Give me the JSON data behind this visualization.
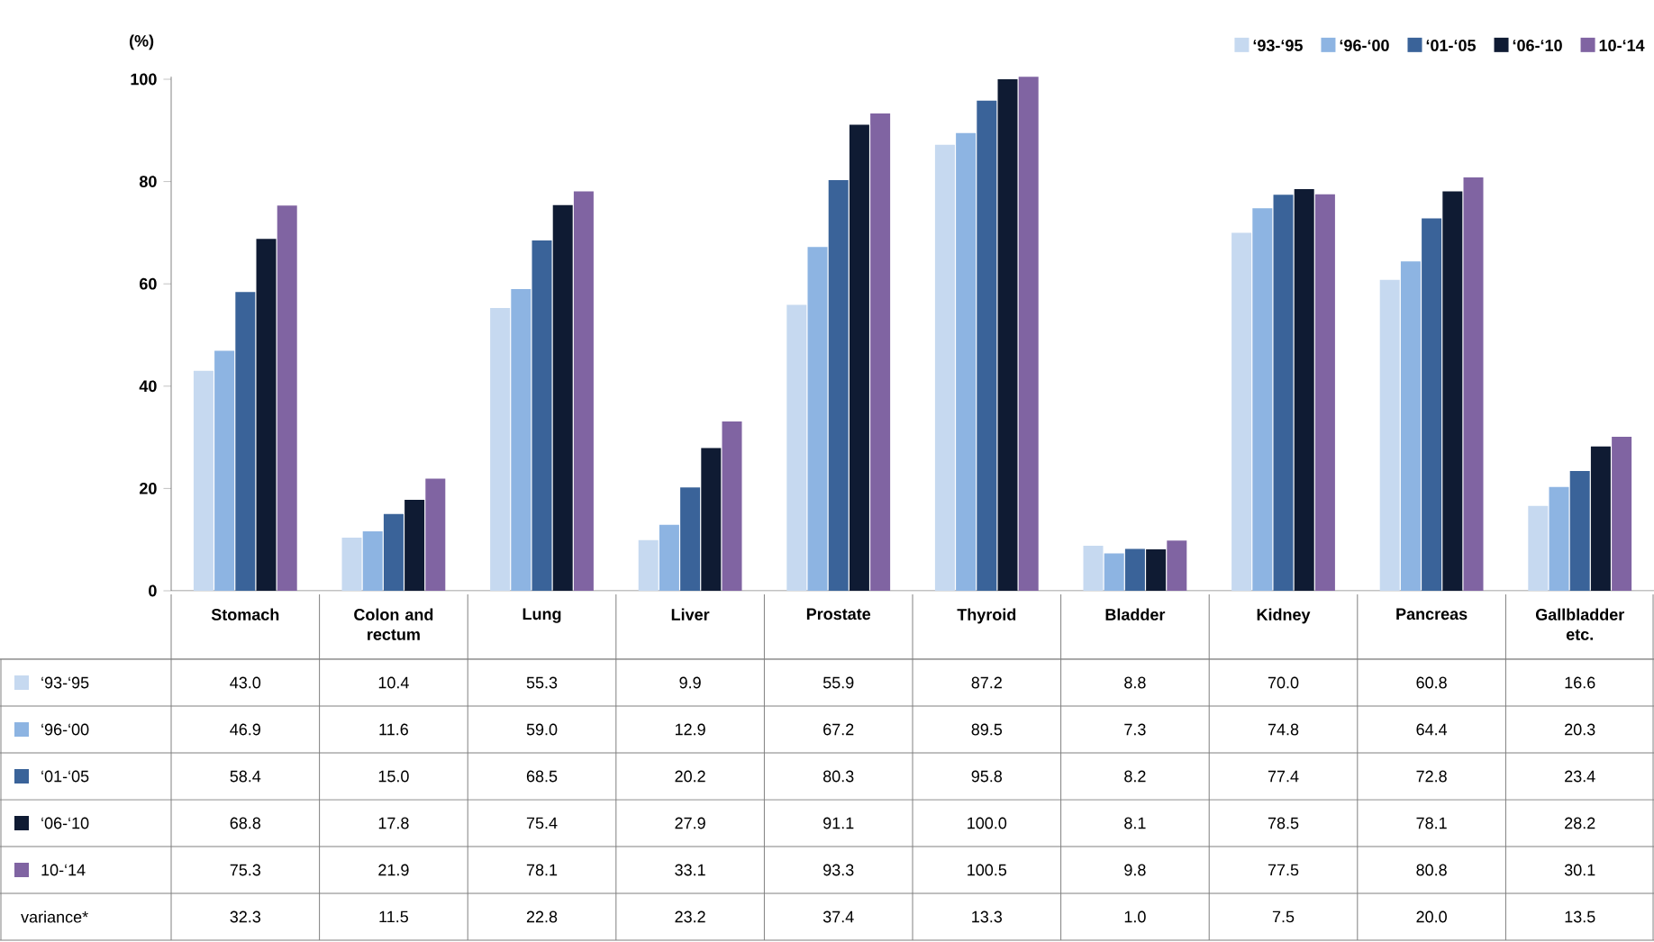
{
  "chart_data": {
    "type": "bar",
    "ylabel": "(%)",
    "categories": [
      "Stomach",
      "Colon and rectum",
      "Lung",
      "Liver",
      "Prostate",
      "Thyroid",
      "Bladder",
      "Kidney",
      "Pancreas",
      "Gallbladder etc."
    ],
    "series": [
      {
        "name": "‘93-‘95",
        "color": "#c6d9f0",
        "values": [
          43.0,
          10.4,
          55.3,
          9.9,
          55.9,
          87.2,
          8.8,
          70.0,
          60.8,
          16.6
        ],
        "value_labels": [
          "43.0",
          "10.4",
          "55.3",
          "9.9",
          "55.9",
          "87.2",
          "8.8",
          "70.0",
          "60.8",
          "16.6"
        ]
      },
      {
        "name": "‘96-‘00",
        "color": "#8db4e2",
        "values": [
          46.9,
          11.6,
          59.0,
          12.9,
          67.2,
          89.5,
          7.3,
          74.8,
          64.4,
          20.3
        ],
        "value_labels": [
          "46.9",
          "11.6",
          "59.0",
          "12.9",
          "67.2",
          "89.5",
          "7.3",
          "74.8",
          "64.4",
          "20.3"
        ]
      },
      {
        "name": "‘01-‘05",
        "color": "#3a6399",
        "values": [
          58.4,
          15.0,
          68.5,
          20.2,
          80.3,
          95.8,
          8.2,
          77.4,
          72.8,
          23.4
        ],
        "value_labels": [
          "58.4",
          "15.0",
          "68.5",
          "20.2",
          "80.3",
          "95.8",
          "8.2",
          "77.4",
          "72.8",
          "23.4"
        ]
      },
      {
        "name": "‘06-‘10",
        "color": "#0f1b33",
        "values": [
          68.8,
          17.8,
          75.4,
          27.9,
          91.1,
          100.0,
          8.1,
          78.5,
          78.1,
          28.2
        ],
        "value_labels": [
          "68.8",
          "17.8",
          "75.4",
          "27.9",
          "91.1",
          "100.0",
          "8.1",
          "78.5",
          "78.1",
          "28.2"
        ]
      },
      {
        "name": "10-‘14",
        "color": "#8064a2",
        "values": [
          75.3,
          21.9,
          78.1,
          33.1,
          93.3,
          100.5,
          9.8,
          77.5,
          80.8,
          30.1
        ],
        "value_labels": [
          "75.3",
          "21.9",
          "78.1",
          "33.1",
          "93.3",
          "100.5",
          "9.8",
          "77.5",
          "80.8",
          "30.1"
        ]
      }
    ],
    "ylim": [
      0,
      100.5
    ],
    "yticks": [
      0,
      20,
      40,
      60,
      80,
      100
    ],
    "legend": "top right",
    "annotations": [
      "variance*",
      "32.3",
      "11.5",
      "22.8",
      "23.2",
      "37.4",
      "13.3",
      "1.0",
      "7.5",
      "20.0",
      "13.5"
    ]
  }
}
